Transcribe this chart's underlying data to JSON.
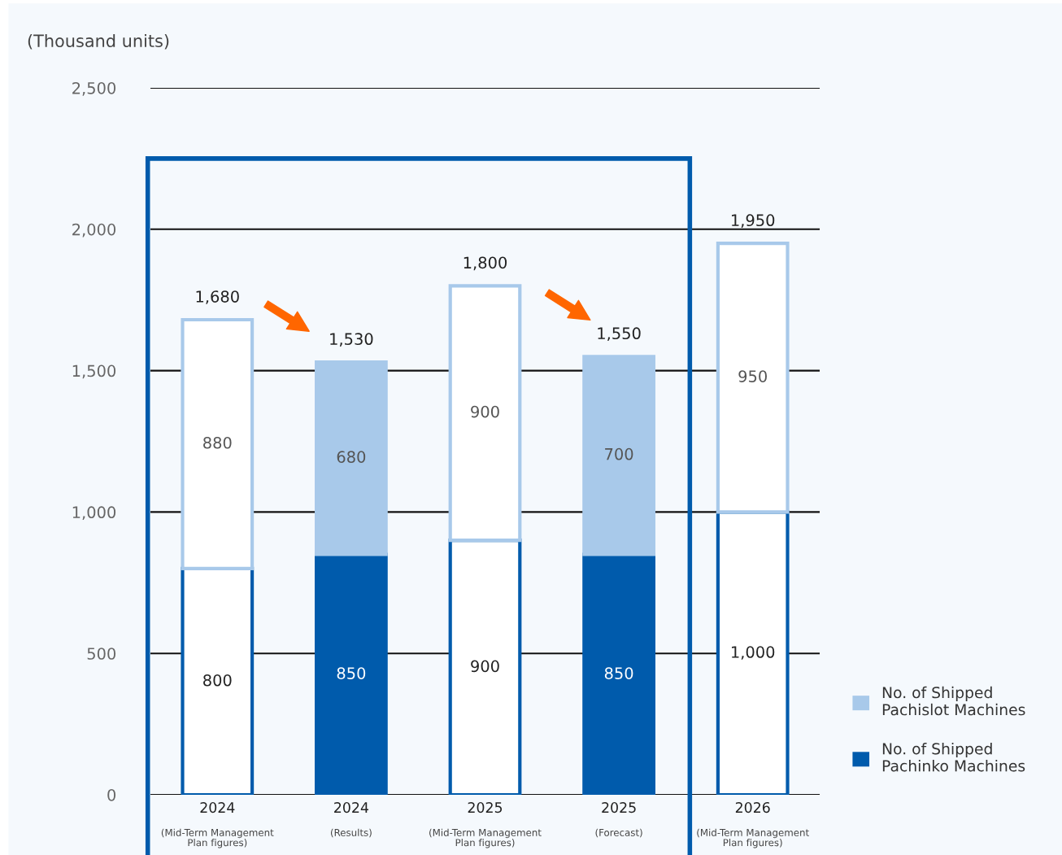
{
  "chart_data": {
    "type": "bar",
    "stacked": true,
    "ylabel": "(Thousand units)",
    "categories": [
      "2024\n(Mid-Term Management\nPlan figures)",
      "2024\n(Results)",
      "2025\n(Mid-Term Management\nPlan figures)",
      "2025\n(Forecast)",
      "2026\n(Mid-Term Management\nPlan figures)"
    ],
    "series": [
      {
        "name": "No. of Shipped\nPachinko Machines",
        "color": "#005bac",
        "colors": [
          "#ffffff",
          "#005bac",
          "#ffffff",
          "#005bac",
          "#ffffff"
        ],
        "values": [
          800,
          850,
          900,
          850,
          1000
        ],
        "value_labels": [
          "800",
          "850",
          "900",
          "850",
          "1,000"
        ]
      },
      {
        "name": "No. of Shipped\nPachislot Machines",
        "color": "#a8c9ea",
        "colors": [
          "#ffffff",
          "#a8c9ea",
          "#ffffff",
          "#a8c9ea",
          "#ffffff"
        ],
        "values": [
          880,
          680,
          900,
          700,
          950
        ],
        "value_labels": [
          "880",
          "680",
          "900",
          "700",
          "950"
        ]
      }
    ],
    "totals": [
      "1,680",
      "1,530",
      "1,800",
      "1,550",
      "1,950"
    ],
    "ylim": [
      0,
      2500
    ],
    "yticks": [
      {
        "value": 0,
        "label": "0"
      },
      {
        "value": 500,
        "label": "500"
      },
      {
        "value": 1000,
        "label": "1,000"
      },
      {
        "value": 1500,
        "label": "1,500"
      },
      {
        "value": 2000,
        "label": "2,000"
      },
      {
        "value": 2500,
        "label": "2,500"
      }
    ],
    "grid": "y",
    "legend": "right"
  }
}
